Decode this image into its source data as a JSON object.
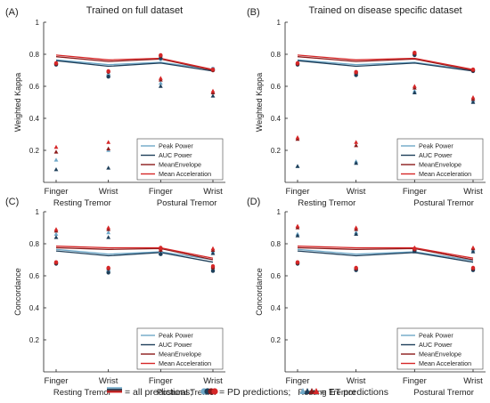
{
  "colors": {
    "peak_power": "#6fa8c8",
    "auc_power": "#1e3f5a",
    "mean_envelope": "#8b1a1a",
    "mean_acceleration": "#d62728",
    "ink": "#222222"
  },
  "legend_entries": [
    "Peak Power",
    "AUC Power",
    "MeanEnvelope",
    "Mean Acceleration"
  ],
  "bottom_legend": {
    "all_text": "= all predictions;",
    "pd_text": "= PD predictions;",
    "et_text": "= ET predictions"
  },
  "chart_data": [
    {
      "type": "line",
      "panel": "(A)",
      "title": "Trained on full dataset",
      "ylabel": "Weighted Kappa",
      "categories": [
        "Finger",
        "Wrist",
        "Finger",
        "Wrist"
      ],
      "groups": [
        "Resting Tremor",
        "Postural Tremor"
      ],
      "ylim": [
        0,
        1
      ],
      "yticks": [
        0.2,
        0.4,
        0.6,
        0.8,
        1
      ],
      "ytick_labels": [
        "0.2",
        "0.4",
        "0.6",
        "0.8",
        "1"
      ],
      "legend_position": "lower-right",
      "series": [
        {
          "name": "Peak Power",
          "values": [
            0.765,
            0.735,
            0.75,
            0.705
          ],
          "pd": [
            0.74,
            0.67,
            0.77,
            0.71
          ],
          "et": [
            0.14,
            0.2,
            0.62,
            0.56
          ]
        },
        {
          "name": "AUC Power",
          "values": [
            0.76,
            0.725,
            0.745,
            0.695
          ],
          "pd": [
            0.735,
            0.66,
            0.775,
            0.7
          ],
          "et": [
            0.08,
            0.09,
            0.6,
            0.54
          ]
        },
        {
          "name": "MeanEnvelope",
          "values": [
            0.785,
            0.755,
            0.77,
            0.7
          ],
          "pd": [
            0.74,
            0.69,
            0.79,
            0.7
          ],
          "et": [
            0.19,
            0.21,
            0.64,
            0.56
          ]
        },
        {
          "name": "Mean Acceleration",
          "values": [
            0.795,
            0.765,
            0.775,
            0.705
          ],
          "pd": [
            0.745,
            0.695,
            0.795,
            0.705
          ],
          "et": [
            0.22,
            0.25,
            0.65,
            0.57
          ]
        }
      ]
    },
    {
      "type": "line",
      "panel": "(B)",
      "title": "Trained on disease specific dataset",
      "ylabel": "Weighted Kappa",
      "categories": [
        "Finger",
        "Wrist",
        "Finger",
        "Wrist"
      ],
      "groups": [
        "Resting Tremor",
        "Postural Tremor"
      ],
      "ylim": [
        0,
        1
      ],
      "yticks": [
        0.2,
        0.4,
        0.6,
        0.8,
        1
      ],
      "ytick_labels": [
        "0.2",
        "0.4",
        "0.6",
        "0.8",
        "1"
      ],
      "legend_position": "lower-right",
      "series": [
        {
          "name": "Peak Power",
          "values": [
            0.765,
            0.735,
            0.75,
            0.7
          ],
          "pd": [
            0.74,
            0.68,
            0.8,
            0.7
          ],
          "et": [
            0.1,
            0.13,
            0.57,
            0.51
          ]
        },
        {
          "name": "AUC Power",
          "values": [
            0.76,
            0.725,
            0.745,
            0.695
          ],
          "pd": [
            0.735,
            0.67,
            0.795,
            0.695
          ],
          "et": [
            0.1,
            0.12,
            0.56,
            0.5
          ]
        },
        {
          "name": "MeanEnvelope",
          "values": [
            0.785,
            0.755,
            0.77,
            0.7
          ],
          "pd": [
            0.74,
            0.685,
            0.805,
            0.7
          ],
          "et": [
            0.27,
            0.23,
            0.59,
            0.52
          ]
        },
        {
          "name": "Mean Acceleration",
          "values": [
            0.795,
            0.765,
            0.775,
            0.705
          ],
          "pd": [
            0.745,
            0.69,
            0.81,
            0.705
          ],
          "et": [
            0.28,
            0.25,
            0.6,
            0.53
          ]
        }
      ]
    },
    {
      "type": "line",
      "panel": "(C)",
      "title": "",
      "ylabel": "Concordance",
      "categories": [
        "Finger",
        "Wrist",
        "Finger",
        "Wrist"
      ],
      "groups": [
        "Resting Tremor",
        "Postural Tremor"
      ],
      "ylim": [
        0,
        1
      ],
      "yticks": [
        0.2,
        0.4,
        0.6,
        0.8,
        1
      ],
      "ytick_labels": [
        "0.2",
        "0.4",
        "0.6",
        "0.8",
        "1"
      ],
      "legend_position": "lower-right",
      "series": [
        {
          "name": "Peak Power",
          "values": [
            0.765,
            0.735,
            0.75,
            0.7
          ],
          "pd": [
            0.68,
            0.63,
            0.74,
            0.64
          ],
          "et": [
            0.86,
            0.87,
            0.75,
            0.75
          ]
        },
        {
          "name": "AUC Power",
          "values": [
            0.755,
            0.725,
            0.745,
            0.685
          ],
          "pd": [
            0.675,
            0.62,
            0.735,
            0.63
          ],
          "et": [
            0.84,
            0.84,
            0.74,
            0.74
          ]
        },
        {
          "name": "MeanEnvelope",
          "values": [
            0.775,
            0.765,
            0.77,
            0.7
          ],
          "pd": [
            0.68,
            0.645,
            0.77,
            0.65
          ],
          "et": [
            0.88,
            0.89,
            0.76,
            0.76
          ]
        },
        {
          "name": "Mean Acceleration",
          "values": [
            0.785,
            0.775,
            0.775,
            0.71
          ],
          "pd": [
            0.685,
            0.65,
            0.775,
            0.66
          ],
          "et": [
            0.89,
            0.9,
            0.77,
            0.77
          ]
        }
      ]
    },
    {
      "type": "line",
      "panel": "(D)",
      "title": "",
      "ylabel": "Concordance",
      "categories": [
        "Finger",
        "Wrist",
        "Finger",
        "Wrist"
      ],
      "groups": [
        "Resting Tremor",
        "Postural Tremor"
      ],
      "ylim": [
        0,
        1
      ],
      "yticks": [
        0.2,
        0.4,
        0.6,
        0.8,
        1
      ],
      "ytick_labels": [
        "0.2",
        "0.4",
        "0.6",
        "0.8",
        "1"
      ],
      "legend_position": "lower-right",
      "series": [
        {
          "name": "Peak Power",
          "values": [
            0.765,
            0.735,
            0.75,
            0.695
          ],
          "pd": [
            0.68,
            0.64,
            0.76,
            0.64
          ],
          "et": [
            0.86,
            0.87,
            0.76,
            0.76
          ]
        },
        {
          "name": "AUC Power",
          "values": [
            0.755,
            0.725,
            0.745,
            0.685
          ],
          "pd": [
            0.675,
            0.635,
            0.755,
            0.635
          ],
          "et": [
            0.85,
            0.86,
            0.75,
            0.75
          ]
        },
        {
          "name": "MeanEnvelope",
          "values": [
            0.775,
            0.765,
            0.77,
            0.7
          ],
          "pd": [
            0.68,
            0.645,
            0.765,
            0.645
          ],
          "et": [
            0.9,
            0.89,
            0.77,
            0.77
          ]
        },
        {
          "name": "Mean Acceleration",
          "values": [
            0.785,
            0.775,
            0.775,
            0.71
          ],
          "pd": [
            0.685,
            0.65,
            0.77,
            0.65
          ],
          "et": [
            0.91,
            0.9,
            0.775,
            0.775
          ]
        }
      ]
    }
  ]
}
